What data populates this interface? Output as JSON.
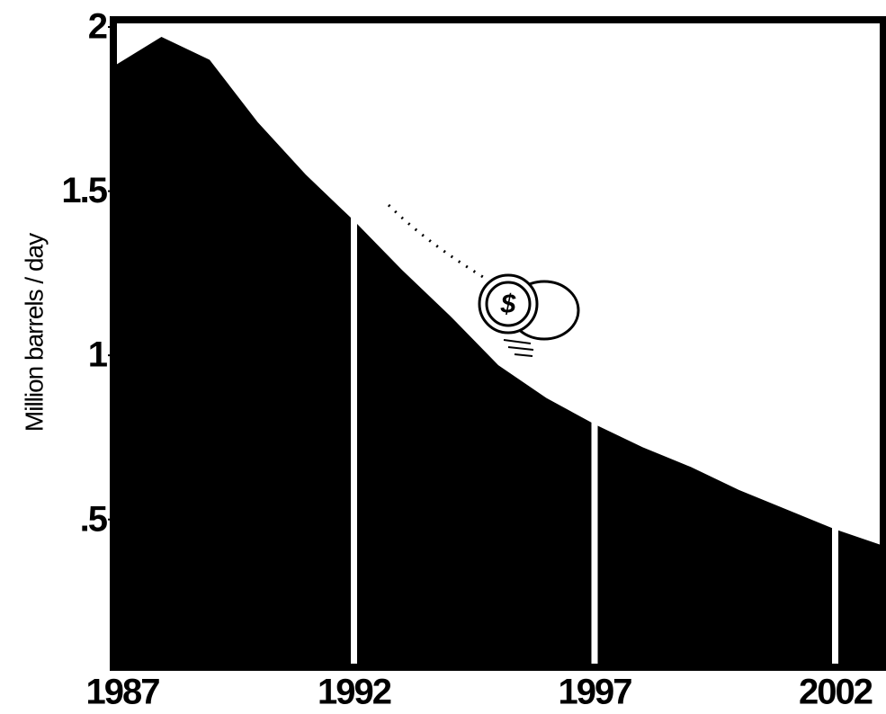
{
  "chart_data": {
    "type": "area",
    "y_label": "Million barrels / day",
    "x": [
      1987,
      1988,
      1989,
      1990,
      1991,
      1992,
      1993,
      1994,
      1995,
      1996,
      1997,
      1998,
      1999,
      2000,
      2001,
      2002,
      2003
    ],
    "values": [
      1.88,
      1.97,
      1.9,
      1.71,
      1.55,
      1.41,
      1.26,
      1.12,
      0.97,
      0.87,
      0.79,
      0.72,
      0.66,
      0.59,
      0.53,
      0.47,
      0.42
    ],
    "color": "#000000",
    "xlim": [
      1987,
      2003
    ],
    "ylim": [
      0.05,
      2
    ],
    "xticks": [
      1987,
      1992,
      1997,
      2002
    ],
    "yticks": [
      {
        "value": 0.5,
        "label": ".5"
      },
      1,
      1.5,
      2
    ],
    "grid": true
  }
}
